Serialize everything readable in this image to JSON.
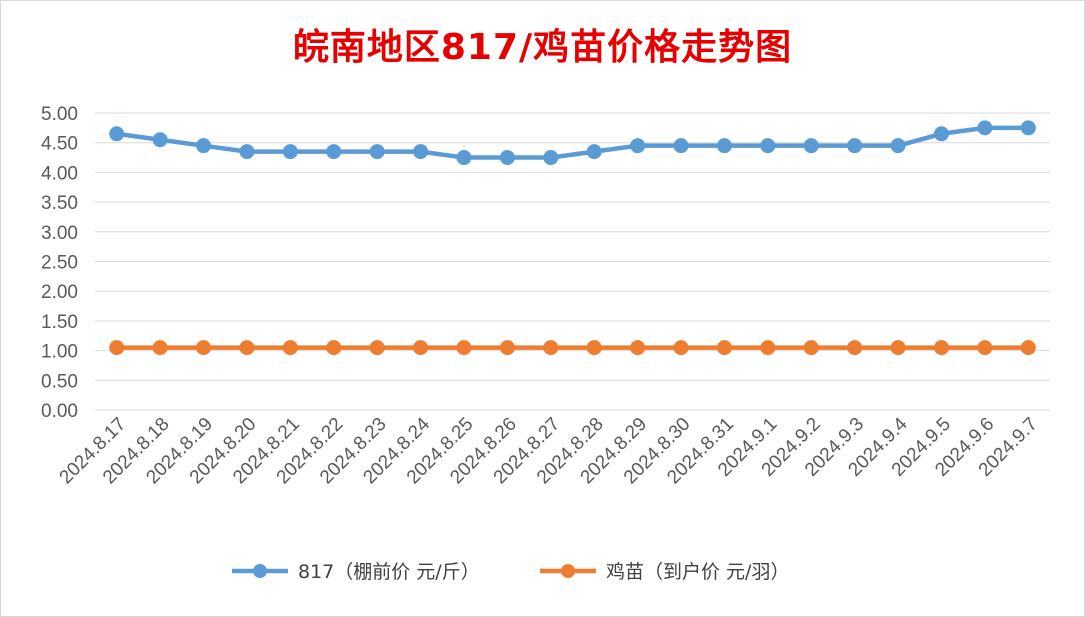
{
  "chart_data": {
    "type": "line",
    "title": "皖南地区817/鸡苗价格走势图",
    "xlabel": "",
    "ylabel": "",
    "ylim": [
      0,
      5
    ],
    "yticks": [
      "0.00",
      "0.50",
      "1.00",
      "1.50",
      "2.00",
      "2.50",
      "3.00",
      "3.50",
      "4.00",
      "4.50",
      "5.00"
    ],
    "grid": true,
    "legend_position": "bottom",
    "categories": [
      "2024.8.17",
      "2024.8.18",
      "2024.8.19",
      "2024.8.20",
      "2024.8.21",
      "2024.8.22",
      "2024.8.23",
      "2024.8.24",
      "2024.8.25",
      "2024.8.26",
      "2024.8.27",
      "2024.8.28",
      "2024.8.29",
      "2024.8.30",
      "2024.8.31",
      "2024.9.1",
      "2024.9.2",
      "2024.9.3",
      "2024.9.4",
      "2024.9.5",
      "2024.9.6",
      "2024.9.7"
    ],
    "series": [
      {
        "name": "817（棚前价 元/斤）",
        "color": "#5b9bd5",
        "values": [
          4.65,
          4.55,
          4.45,
          4.35,
          4.35,
          4.35,
          4.35,
          4.35,
          4.25,
          4.25,
          4.25,
          4.35,
          4.45,
          4.45,
          4.45,
          4.45,
          4.45,
          4.45,
          4.45,
          4.65,
          4.75,
          4.75
        ]
      },
      {
        "name": "鸡苗（到户价 元/羽）",
        "color": "#ed7d31",
        "values": [
          1.05,
          1.05,
          1.05,
          1.05,
          1.05,
          1.05,
          1.05,
          1.05,
          1.05,
          1.05,
          1.05,
          1.05,
          1.05,
          1.05,
          1.05,
          1.05,
          1.05,
          1.05,
          1.05,
          1.05,
          1.05,
          1.05
        ]
      }
    ]
  }
}
